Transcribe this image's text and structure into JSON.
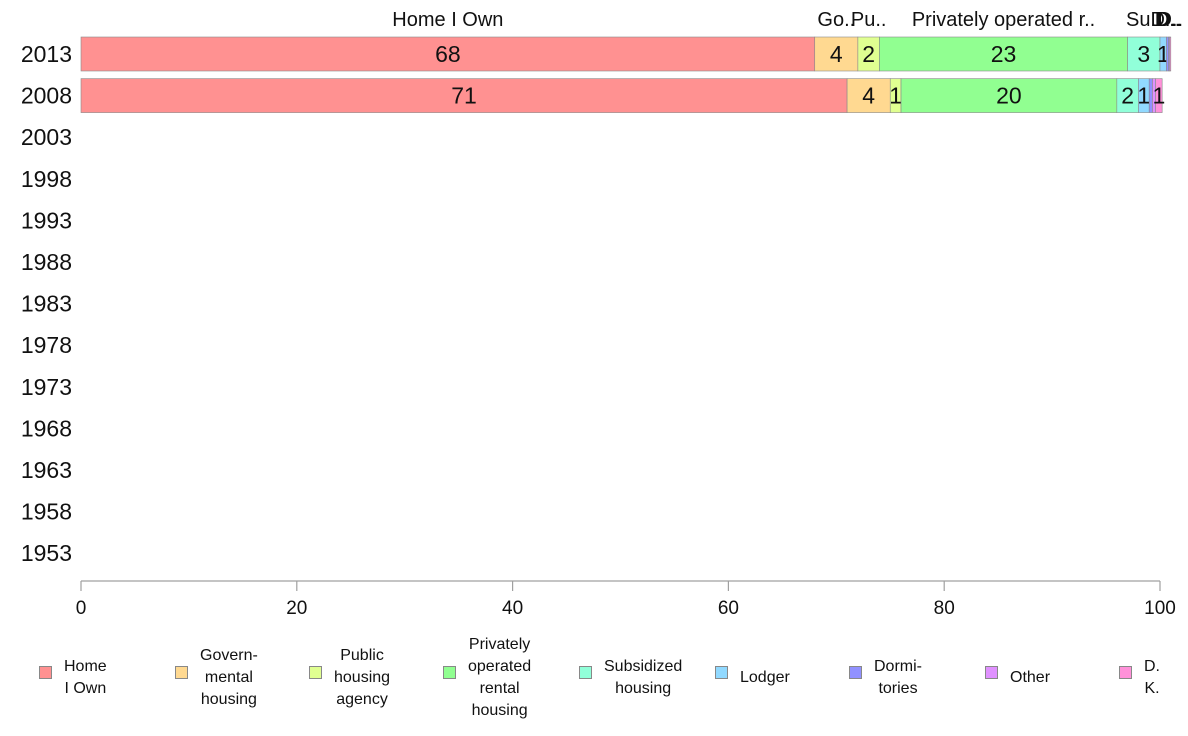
{
  "chart_data": {
    "type": "bar",
    "orientation": "horizontal",
    "stacked": true,
    "categories": [
      "2013",
      "2008",
      "2003",
      "1998",
      "1993",
      "1988",
      "1983",
      "1978",
      "1973",
      "1968",
      "1963",
      "1958",
      "1953"
    ],
    "xlim": [
      0,
      100
    ],
    "xticks": [
      "0",
      "20",
      "40",
      "60",
      "80",
      "100"
    ],
    "top_labels": [
      "Home I Own",
      "Go..",
      "Pu..",
      "Privately operated r..",
      "Su..",
      "D..",
      "D..",
      "D..",
      "D.."
    ],
    "series": [
      {
        "name": "Home\nI Own",
        "color": "#ff9191",
        "values": [
          68,
          71,
          null,
          null,
          null,
          null,
          null,
          null,
          null,
          null,
          null,
          null,
          null
        ],
        "labels": [
          "68",
          "71"
        ]
      },
      {
        "name": "Govern-\nmental\nhousing",
        "color": "#ffd991",
        "values": [
          4,
          4,
          null,
          null,
          null,
          null,
          null,
          null,
          null,
          null,
          null,
          null,
          null
        ],
        "labels": [
          "4",
          "4"
        ]
      },
      {
        "name": "Public\nhousing\nagency",
        "color": "#e0ff91",
        "values": [
          2,
          1,
          null,
          null,
          null,
          null,
          null,
          null,
          null,
          null,
          null,
          null,
          null
        ],
        "labels": [
          "2",
          "1"
        ]
      },
      {
        "name": "Privately\noperated\nrental\nhousing",
        "color": "#91ff91",
        "values": [
          23,
          20,
          null,
          null,
          null,
          null,
          null,
          null,
          null,
          null,
          null,
          null,
          null
        ],
        "labels": [
          "23",
          "20"
        ]
      },
      {
        "name": "Subsidized\nhousing",
        "color": "#91ffd9",
        "values": [
          3,
          2,
          null,
          null,
          null,
          null,
          null,
          null,
          null,
          null,
          null,
          null,
          null
        ],
        "labels": [
          "3",
          "2"
        ]
      },
      {
        "name": "Lodger",
        "color": "#91d9ff",
        "values": [
          0.6,
          1,
          null,
          null,
          null,
          null,
          null,
          null,
          null,
          null,
          null,
          null,
          null
        ],
        "labels": [
          "1",
          "1"
        ]
      },
      {
        "name": "Dormi-\ntories",
        "color": "#9191ff",
        "values": [
          0.2,
          0.3,
          null,
          null,
          null,
          null,
          null,
          null,
          null,
          null,
          null,
          null,
          null
        ],
        "labels": [
          "",
          ""
        ]
      },
      {
        "name": "Other",
        "color": "#e091ff",
        "values": [
          0.1,
          0.3,
          null,
          null,
          null,
          null,
          null,
          null,
          null,
          null,
          null,
          null,
          null
        ],
        "labels": [
          "",
          ""
        ]
      },
      {
        "name": "D. K.",
        "color": "#ff91d9",
        "values": [
          0.1,
          0.6,
          null,
          null,
          null,
          null,
          null,
          null,
          null,
          null,
          null,
          null,
          null
        ],
        "labels": [
          "",
          "1"
        ]
      }
    ],
    "grid": false,
    "legend_position": "bottom"
  }
}
